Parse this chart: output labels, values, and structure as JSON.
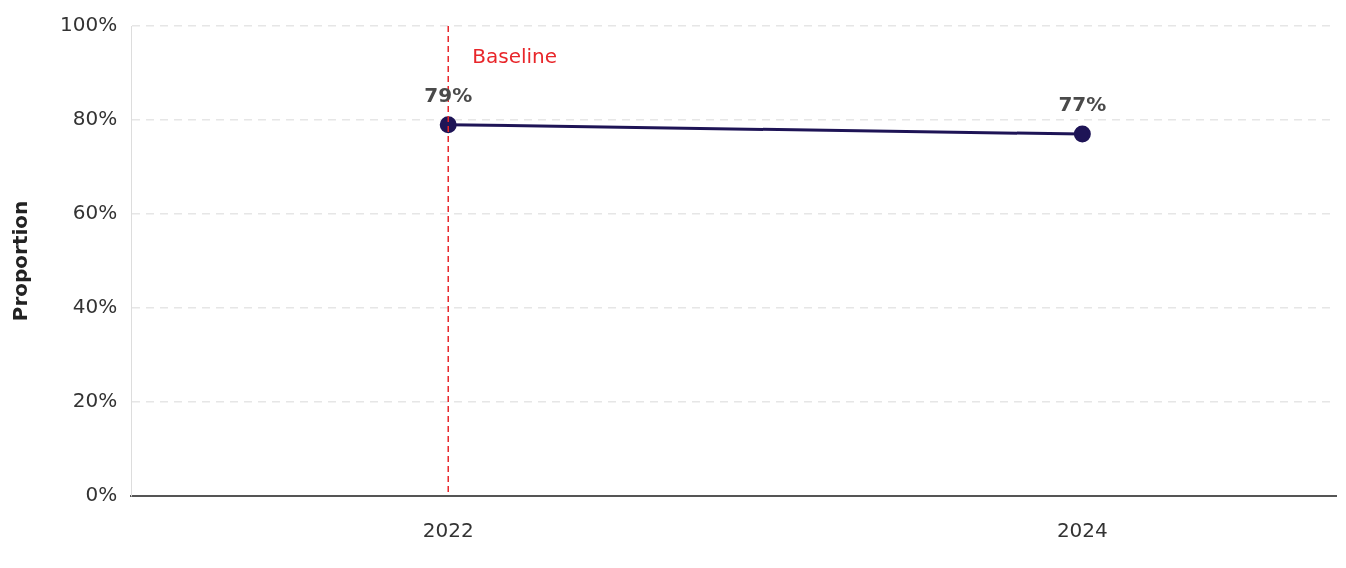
{
  "chart_data": {
    "type": "line",
    "ylabel": "Proportion",
    "x": [
      2022,
      2024
    ],
    "series": [
      {
        "color": "#1e1456",
        "values": [
          79,
          77
        ]
      }
    ],
    "xlim": [
      2021,
      2024.8
    ],
    "xticks": [
      2022,
      2024
    ],
    "ylim": [
      0,
      100
    ],
    "yticks": [
      {
        "value": 0,
        "label": "0%"
      },
      {
        "value": 20,
        "label": "20%"
      },
      {
        "value": 40,
        "label": "40%"
      },
      {
        "value": 60,
        "label": "60%"
      },
      {
        "value": 80,
        "label": "80%"
      },
      {
        "value": 100,
        "label": "100%"
      }
    ],
    "ref_lines": [
      {
        "axis": "x",
        "value": 2022,
        "label": "Baseline",
        "color": "#e8262a",
        "line_style": "dashed"
      }
    ],
    "value_labels": [
      "79%",
      "77%"
    ],
    "grid": "y",
    "legend": false,
    "marker": "circle",
    "line_style": "solid"
  }
}
